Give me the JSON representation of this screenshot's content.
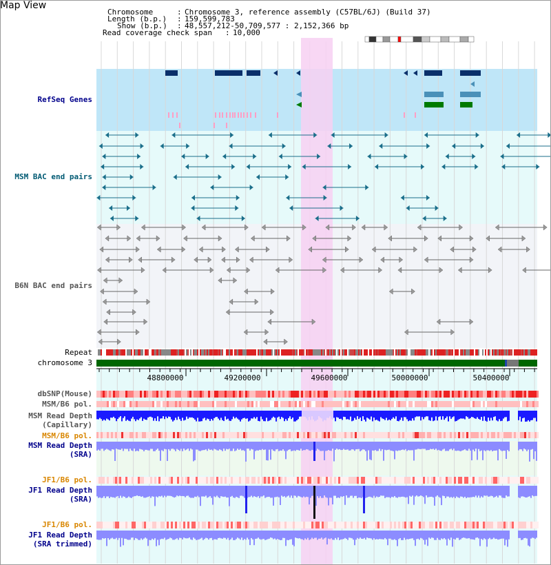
{
  "title": "Map View",
  "header": {
    "chromosome_label": "Chromosome",
    "chromosome_value": "Chromosome 3, reference assembly (C57BL/6J) (Build 37)",
    "length_label": "Length (b.p.)",
    "length_value": "159,599,783",
    "show_label": "Show (b.p.)",
    "show_value": "48,557,212-50,709,577 : 2,152,366 bp",
    "coverage_label": "Read coverage check span",
    "coverage_value": "10,000",
    "separator": ":"
  },
  "tracks": {
    "refseq": "RefSeq Genes",
    "msm_bac": "MSM BAC end pairs",
    "b6n_bac": "B6N BAC end pairs",
    "repeat": "Repeat",
    "chromosome": "chromosome 3",
    "dbsnp": "dbSNP(Mouse)",
    "msm_b6_pol_1": "MSM/B6 pol.",
    "msm_read_depth_cap_1": "MSM Read Depth",
    "msm_read_depth_cap_2": "(Capillary)",
    "msm_b6_pol_2": "MSM/B6 pol.",
    "msm_read_depth_sra_1": "MSM Read Depth",
    "msm_read_depth_sra_2": "(SRA)",
    "jf1_b6_pol_1": "JF1/B6 pol.",
    "jf1_read_depth_1": "JF1 Read Depth",
    "jf1_read_depth_2": "(SRA)",
    "jf1_b6_pol_2": "JF1/B6 pol.",
    "jf1_read_depth_trim_1": "JF1 Read Depth",
    "jf1_read_depth_trim_2": "(SRA trimmed)"
  },
  "axis": {
    "ticks": [
      "48800000",
      "49200000",
      "49600000",
      "50000000",
      "50400000"
    ]
  },
  "colors": {
    "refseq_bg": "#bfe6f8",
    "msm_bg": "#e6fafa",
    "b6n_bg": "#f2f4f8",
    "highlight": "#f7d0f2",
    "chromosome": "#006600",
    "depth_dark": "#1a1aff",
    "depth_light": "#8c8cff",
    "pol_light": "#ffc0c0",
    "pol_dark": "#ee2222"
  }
}
